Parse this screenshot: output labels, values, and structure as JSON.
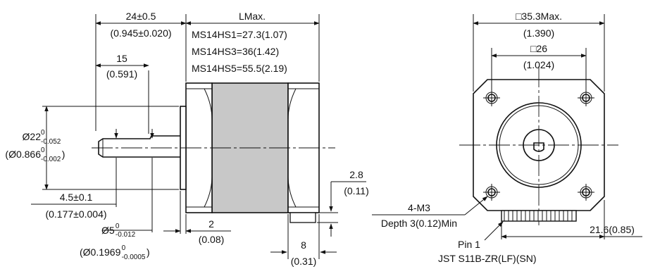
{
  "side_view": {
    "length_label": "LMax.",
    "length_rows": [
      "MS14HS1=27.3(1.07)",
      "MS14HS3=36(1.42)",
      "MS14HS5=55.5(2.19)"
    ],
    "shaft_total_mm": "24±0.5",
    "shaft_total_in": "(0.945±0.020)",
    "flat_len_mm": "15",
    "flat_len_in": "(0.591)",
    "pilot_dia_mm": "Ø22",
    "pilot_dia_mm_upper": "0",
    "pilot_dia_mm_lower": "-0.052",
    "pilot_dia_in": "(Ø0.866",
    "pilot_dia_in_upper": "0",
    "pilot_dia_in_lower": "-0.002",
    "pilot_dia_in_close": ")",
    "flat_depth_mm": "4.5±0.1",
    "flat_depth_in": "(0.177±0.004)",
    "shaft_dia_mm": "Ø5",
    "shaft_dia_mm_upper": "0",
    "shaft_dia_mm_lower": "-0.012",
    "shaft_dia_in": "(Ø0.1969",
    "shaft_dia_in_upper": "0",
    "shaft_dia_in_lower": "-0.0005",
    "shaft_dia_in_close": ")",
    "pilot_len_mm": "2",
    "pilot_len_in": "(0.08)",
    "gap_mm": "2.8",
    "gap_in": "(0.11)",
    "end_len_mm": "8",
    "end_len_in": "(0.31)"
  },
  "front_view": {
    "frame_mm": "□35.3Max.",
    "frame_in": "(1.390)",
    "hole_spacing_mm": "□26",
    "hole_spacing_in": "(1.024)",
    "thread_label": "4-M3",
    "thread_depth": "Depth 3(0.12)Min",
    "pin_label": "Pin 1",
    "connector_label": "JST S11B-ZR(LF)(SN)",
    "connector_offset": "21.6(0.85)"
  },
  "colors": {
    "stator": "#c8c8c8",
    "line": "#111111"
  }
}
